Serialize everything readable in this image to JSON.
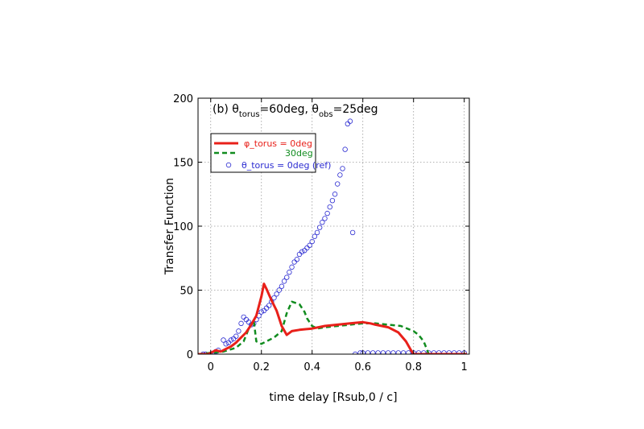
{
  "chart_data": {
    "type": "line",
    "panel_label": {
      "prefix": "(b) θ",
      "sub1": "torus",
      "mid": "=60deg, θ",
      "sub2": "obs",
      "suffix": "=25deg"
    },
    "xlabel": "time delay [Rsub,0 / c]",
    "ylabel": "Transfer Function",
    "xlim": [
      -0.05,
      1.02
    ],
    "ylim": [
      0,
      200
    ],
    "xticks": [
      0,
      0.2,
      0.4,
      0.6,
      0.8,
      1
    ],
    "xtick_labels": [
      "0",
      "0.2",
      "0.4",
      "0.6",
      "0.8",
      "1"
    ],
    "yticks": [
      0,
      50,
      100,
      150,
      200
    ],
    "ytick_labels": [
      "0",
      "50",
      "100",
      "150",
      "200"
    ],
    "grid": true,
    "legend_position": "top-left",
    "series": [
      {
        "name": "φ_torus = 0deg",
        "color": "#e8201a",
        "style": "solid",
        "x": [
          -0.05,
          -0.01,
          0.0,
          0.02,
          0.04,
          0.06,
          0.08,
          0.1,
          0.12,
          0.14,
          0.16,
          0.18,
          0.2,
          0.21,
          0.22,
          0.24,
          0.26,
          0.28,
          0.3,
          0.32,
          0.35,
          0.4,
          0.45,
          0.5,
          0.55,
          0.6,
          0.63,
          0.65,
          0.7,
          0.74,
          0.77,
          0.79,
          0.8,
          0.85,
          1.01
        ],
        "y": [
          0,
          0,
          1,
          3,
          2,
          4,
          6,
          9,
          13,
          17,
          23,
          30,
          45,
          55,
          51,
          42,
          34,
          22,
          15,
          18,
          19,
          20,
          22,
          23,
          24,
          25,
          24,
          23,
          21,
          17,
          10,
          3,
          0,
          0,
          0
        ]
      },
      {
        "name": "30deg",
        "color": "#118c1f",
        "style": "dashed",
        "x": [
          -0.05,
          0.0,
          0.05,
          0.1,
          0.13,
          0.15,
          0.17,
          0.18,
          0.2,
          0.22,
          0.25,
          0.28,
          0.3,
          0.32,
          0.35,
          0.37,
          0.38,
          0.4,
          0.42,
          0.45,
          0.5,
          0.55,
          0.6,
          0.65,
          0.7,
          0.75,
          0.8,
          0.82,
          0.84,
          0.85,
          0.86,
          1.01
        ],
        "y": [
          0,
          1,
          2,
          5,
          10,
          20,
          26,
          10,
          8,
          10,
          13,
          18,
          32,
          41,
          39,
          33,
          28,
          22,
          20,
          21,
          22,
          23,
          24,
          24,
          23,
          22,
          18,
          15,
          10,
          5,
          0,
          0
        ]
      },
      {
        "name": "θ_torus = 0deg (ref)",
        "color": "#2b2bd1",
        "style": "markers",
        "x": [
          -0.03,
          -0.02,
          0.0,
          0.01,
          0.02,
          0.03,
          0.05,
          0.06,
          0.07,
          0.08,
          0.09,
          0.1,
          0.11,
          0.12,
          0.13,
          0.14,
          0.15,
          0.16,
          0.17,
          0.18,
          0.19,
          0.2,
          0.21,
          0.22,
          0.23,
          0.24,
          0.25,
          0.26,
          0.27,
          0.28,
          0.29,
          0.3,
          0.31,
          0.32,
          0.33,
          0.34,
          0.35,
          0.36,
          0.37,
          0.38,
          0.39,
          0.4,
          0.41,
          0.42,
          0.43,
          0.44,
          0.45,
          0.46,
          0.47,
          0.48,
          0.49,
          0.5,
          0.51,
          0.52,
          0.53,
          0.54,
          0.55,
          0.56,
          0.57,
          0.59,
          0.6,
          0.62,
          0.64,
          0.66,
          0.68,
          0.7,
          0.72,
          0.74,
          0.76,
          0.78,
          0.8,
          0.82,
          0.84,
          0.86,
          0.88,
          0.9,
          0.92,
          0.94,
          0.96,
          0.98,
          1.0
        ],
        "y": [
          0,
          0,
          0,
          0,
          2,
          3,
          11,
          8,
          9,
          11,
          12,
          14,
          18,
          24,
          29,
          27,
          25,
          23,
          24,
          27,
          30,
          33,
          34,
          36,
          38,
          41,
          44,
          47,
          50,
          53,
          57,
          60,
          64,
          68,
          72,
          74,
          78,
          80,
          81,
          83,
          85,
          88,
          92,
          95,
          99,
          103,
          106,
          110,
          115,
          120,
          125,
          133,
          140,
          145,
          160,
          180,
          182,
          95,
          0,
          1,
          1,
          1,
          1,
          1,
          1,
          1,
          1,
          1,
          1,
          1,
          1,
          1,
          1,
          1,
          1,
          1,
          1,
          1,
          1,
          1,
          1
        ]
      }
    ]
  }
}
